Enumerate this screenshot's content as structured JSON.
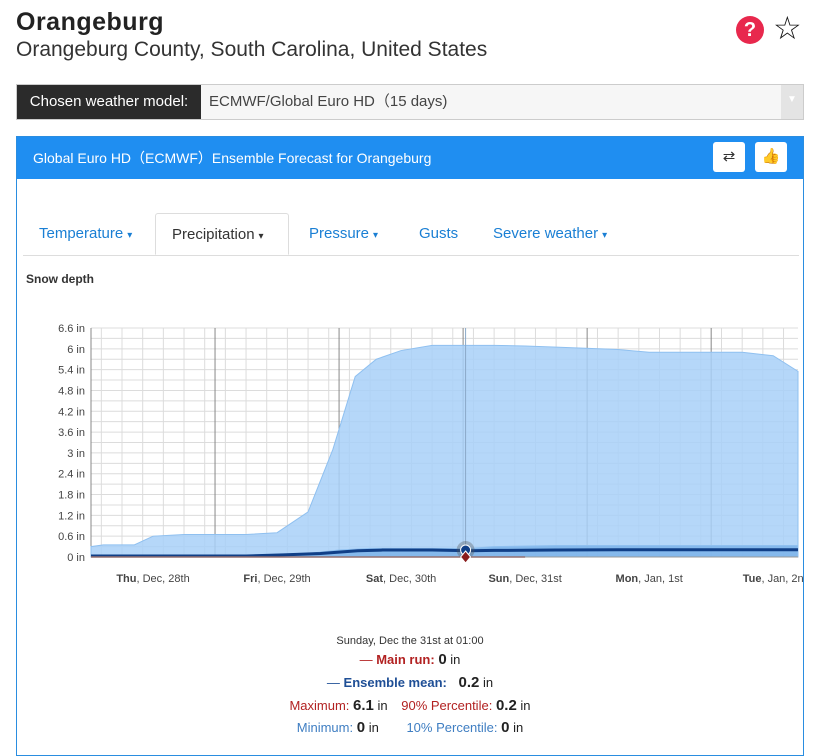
{
  "header": {
    "title": "Orangeburg",
    "subtitle": "Orangeburg County, South Carolina, United States",
    "help_glyph": "?",
    "star_glyph": "☆"
  },
  "model": {
    "label": "Chosen weather model:",
    "value": "ECMWF/Global Euro HD（15 days)"
  },
  "panel": {
    "title": "Global Euro HD（ECMWF）Ensemble Forecast for Orangeburg",
    "retweet_icon": "⇄",
    "like_icon": "👍"
  },
  "tabs": [
    {
      "label": "Temperature",
      "caret": "▾",
      "active": false
    },
    {
      "label": "Precipitation",
      "caret": "▾",
      "active": true
    },
    {
      "label": "Pressure",
      "caret": "▾",
      "active": false
    },
    {
      "label": "Gusts",
      "caret": "",
      "active": false
    },
    {
      "label": "Severe weather",
      "caret": "▾",
      "active": false
    }
  ],
  "chart_data": {
    "type": "area",
    "title": "Snow depth",
    "ylabel": "",
    "xlabel": "",
    "ylim": [
      0,
      6.6
    ],
    "yticks": [
      0,
      0.6,
      1.2,
      1.8,
      2.4,
      3,
      3.6,
      4.2,
      4.8,
      5.4,
      6,
      6.6
    ],
    "ytick_labels": [
      "0 in",
      "0.6 in",
      "1.2 in",
      "1.8 in",
      "2.4 in",
      "3 in",
      "3.6 in",
      "4.2 in",
      "4.8 in",
      "5.4 in",
      "6 in",
      "6.6 in"
    ],
    "x_range_days": [
      -0.25,
      5.45
    ],
    "xticks": [
      {
        "day": 0,
        "bold": "Thu",
        "rest": ", Dec, 28th"
      },
      {
        "day": 1,
        "bold": "Fri",
        "rest": ", Dec, 29th"
      },
      {
        "day": 2,
        "bold": "Sat",
        "rest": ", Dec, 30th"
      },
      {
        "day": 3,
        "bold": "Sun",
        "rest": ", Dec, 31st"
      },
      {
        "day": 4,
        "bold": "Mon",
        "rest": ", Jan, 1st"
      },
      {
        "day": 5,
        "bold": "Tue",
        "rest": ", Jan, 2n"
      }
    ],
    "grid": true,
    "series": [
      {
        "name": "Maximum",
        "color": "#a8d0f8",
        "points": [
          [
            -0.25,
            0.3
          ],
          [
            -0.15,
            0.35
          ],
          [
            0.1,
            0.35
          ],
          [
            0.25,
            0.6
          ],
          [
            0.5,
            0.65
          ],
          [
            1.0,
            0.65
          ],
          [
            1.25,
            0.7
          ],
          [
            1.5,
            1.3
          ],
          [
            1.7,
            3.1
          ],
          [
            1.88,
            5.2
          ],
          [
            2.05,
            5.7
          ],
          [
            2.25,
            5.95
          ],
          [
            2.5,
            6.1
          ],
          [
            3.0,
            6.1
          ],
          [
            3.25,
            6.08
          ],
          [
            3.5,
            6.05
          ],
          [
            4.0,
            5.98
          ],
          [
            4.25,
            5.9
          ],
          [
            4.5,
            5.9
          ],
          [
            5.0,
            5.9
          ],
          [
            5.25,
            5.8
          ],
          [
            5.45,
            5.35
          ]
        ]
      },
      {
        "name": "90% Percentile",
        "color": "#7db4ea",
        "points": [
          [
            -0.25,
            0.05
          ],
          [
            1.0,
            0.05
          ],
          [
            1.5,
            0.1
          ],
          [
            1.75,
            0.2
          ],
          [
            2.0,
            0.25
          ],
          [
            2.5,
            0.25
          ],
          [
            2.8,
            0.25
          ],
          [
            3.0,
            0.3
          ],
          [
            3.5,
            0.33
          ],
          [
            5.45,
            0.33
          ]
        ]
      },
      {
        "name": "Ensemble mean",
        "color": "#103f87",
        "points": [
          [
            -0.25,
            0.03
          ],
          [
            1.0,
            0.03
          ],
          [
            1.3,
            0.06
          ],
          [
            1.6,
            0.1
          ],
          [
            1.9,
            0.18
          ],
          [
            2.1,
            0.2
          ],
          [
            2.5,
            0.2
          ],
          [
            2.8,
            0.18
          ],
          [
            3.0,
            0.19
          ],
          [
            3.5,
            0.2
          ],
          [
            4.0,
            0.21
          ],
          [
            5.45,
            0.21
          ]
        ]
      },
      {
        "name": "Main run",
        "color": "#8a1c1c",
        "points": [
          [
            -0.25,
            0
          ],
          [
            3.25,
            0
          ]
        ]
      }
    ],
    "crosshair_day": 2.77
  },
  "tooltip": {
    "date": "Sunday, Dec the 31st at 01:00",
    "main_run_marker": "—",
    "main_run_label": "Main run:",
    "main_run_value": "0",
    "mean_marker": "—",
    "mean_label": "Ensemble mean:",
    "mean_value": "0.2",
    "max_label": "Maximum:",
    "max_value": "6.1",
    "p90_label": "90% Percentile:",
    "p90_value": "0.2",
    "min_label": "Minimum:",
    "min_value": "0",
    "p10_label": "10% Percentile:",
    "p10_value": "0",
    "unit": "in"
  }
}
